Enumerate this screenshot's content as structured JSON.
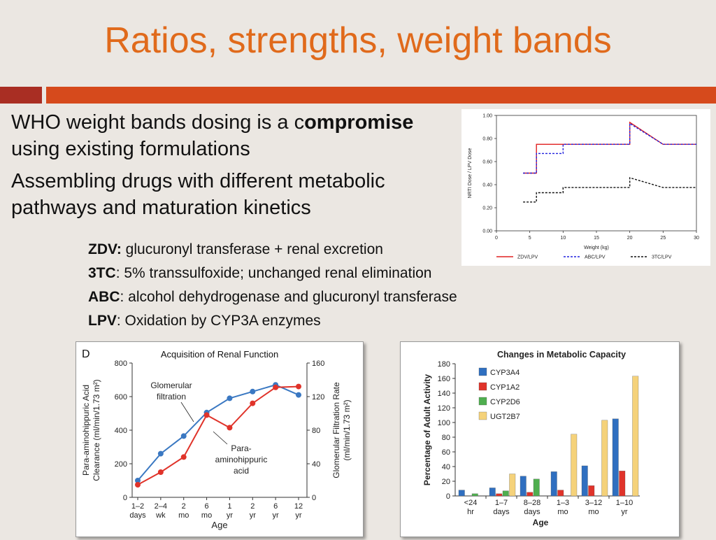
{
  "slide": {
    "title": "Ratios, strengths, weight bands",
    "bullets": [
      {
        "pre": "WHO weight bands dosing is a c",
        "bold": "ompromise",
        "post": " using existing formulations"
      },
      {
        "text": "Assembling drugs with different metabolic pathways and maturation kinetics"
      }
    ],
    "drugs": [
      {
        "name": "ZDV:",
        "desc": " glucuronyl transferase + renal excretion"
      },
      {
        "name": "3TC",
        "desc": ": 5% transsulfoxide; unchanged renal elimination"
      },
      {
        "name": "ABC",
        "desc": ": alcohol dehydrogenase and glucuronyl transferase"
      },
      {
        "name": "LPV",
        "desc": ": Oxidation by CYP3A enzymes"
      }
    ]
  },
  "colors": {
    "title": "#e06a1b",
    "rule_main": "#d64a1c",
    "rule_dark": "#a92e23"
  },
  "chart_data": [
    {
      "type": "line",
      "xlabel": "Weight (kg)",
      "ylabel": "NRTI Dose / LPV Dose",
      "xlim": [
        0,
        30
      ],
      "ylim": [
        0,
        1
      ],
      "xticks": [
        0,
        5,
        10,
        15,
        20,
        25,
        30
      ],
      "yticks": [
        "0.00",
        "0.20",
        "0.40",
        "0.60",
        "0.80",
        "1.00"
      ],
      "legend_position": "bottom",
      "series": [
        {
          "name": "ZDV/LPV",
          "color": "#e02020",
          "dash": "solid",
          "points": [
            [
              4,
              0.5
            ],
            [
              6,
              0.5
            ],
            [
              6,
              0.75
            ],
            [
              10,
              0.75
            ],
            [
              20,
              0.75
            ],
            [
              20,
              0.94
            ],
            [
              25,
              0.75
            ],
            [
              30,
              0.75
            ]
          ]
        },
        {
          "name": "ABC/LPV",
          "color": "#2020dd",
          "dash": "dashed",
          "points": [
            [
              4,
              0.5
            ],
            [
              6,
              0.5
            ],
            [
              6,
              0.67
            ],
            [
              10,
              0.67
            ],
            [
              10,
              0.75
            ],
            [
              20,
              0.75
            ],
            [
              20,
              0.93
            ],
            [
              25,
              0.75
            ],
            [
              30,
              0.75
            ]
          ]
        },
        {
          "name": "3TC/LPV",
          "color": "#111111",
          "dash": "dashed",
          "points": [
            [
              4,
              0.25
            ],
            [
              6,
              0.25
            ],
            [
              6,
              0.33
            ],
            [
              10,
              0.33
            ],
            [
              10,
              0.375
            ],
            [
              20,
              0.375
            ],
            [
              20,
              0.46
            ],
            [
              25,
              0.375
            ],
            [
              30,
              0.375
            ]
          ]
        }
      ]
    },
    {
      "type": "line",
      "panel_label": "D",
      "title": "Acquisition of Renal Function",
      "xlabel": "Age",
      "ylabel": "Para-aminohippuric Acid Clearance (ml/min/1.73 m²)",
      "ylabel_right": "Glomerular Filtration Rate (ml/min/1.73 m²)",
      "categories": [
        [
          "1–2",
          "days"
        ],
        [
          "2–4",
          "wk"
        ],
        [
          "2",
          "mo"
        ],
        [
          "6",
          "mo"
        ],
        [
          "1",
          "yr"
        ],
        [
          "2",
          "yr"
        ],
        [
          "6",
          "yr"
        ],
        [
          "12",
          "yr"
        ]
      ],
      "ylim": [
        0,
        800
      ],
      "ylim_right": [
        0,
        160
      ],
      "yticks": [
        0,
        200,
        400,
        600,
        800
      ],
      "yticks_right": [
        0,
        40,
        80,
        120,
        160
      ],
      "annotations": [
        {
          "text": [
            "Glomerular",
            "filtration"
          ]
        },
        {
          "text": [
            "Para-",
            "aminohippuric",
            "acid"
          ]
        }
      ],
      "series": [
        {
          "name": "Glomerular filtration",
          "color": "#3a78c2",
          "axis": "right",
          "values": [
            20,
            52,
            73,
            101,
            118,
            126,
            134,
            122
          ]
        },
        {
          "name": "Para-aminohippuric acid",
          "color": "#e0332a",
          "axis": "left",
          "values": [
            75,
            150,
            240,
            490,
            415,
            560,
            655,
            660
          ]
        }
      ]
    },
    {
      "type": "bar",
      "title": "Changes in Metabolic Capacity",
      "xlabel": "Age",
      "ylabel": "Percentage of Adult Activity",
      "categories": [
        [
          "<24",
          "hr"
        ],
        [
          "1–7",
          "days"
        ],
        [
          "8–28",
          "days"
        ],
        [
          "1–3",
          "mo"
        ],
        [
          "3–12",
          "mo"
        ],
        [
          "1–10",
          "yr"
        ]
      ],
      "ylim": [
        0,
        180
      ],
      "yticks": [
        0,
        20,
        40,
        60,
        80,
        100,
        120,
        140,
        160,
        180
      ],
      "legend_position": "top-left",
      "series": [
        {
          "name": "CYP3A4",
          "color": "#2f6fc0",
          "values": [
            8,
            11,
            27,
            33,
            41,
            105
          ]
        },
        {
          "name": "CYP1A2",
          "color": "#e0332a",
          "values": [
            null,
            3,
            5,
            8,
            14,
            34
          ]
        },
        {
          "name": "CYP2D6",
          "color": "#4fae4f",
          "values": [
            3,
            7,
            23,
            null,
            null,
            null
          ]
        },
        {
          "name": "UGT2B7",
          "color": "#f5d27a",
          "values": [
            null,
            30,
            null,
            84,
            103,
            163
          ]
        }
      ]
    }
  ]
}
